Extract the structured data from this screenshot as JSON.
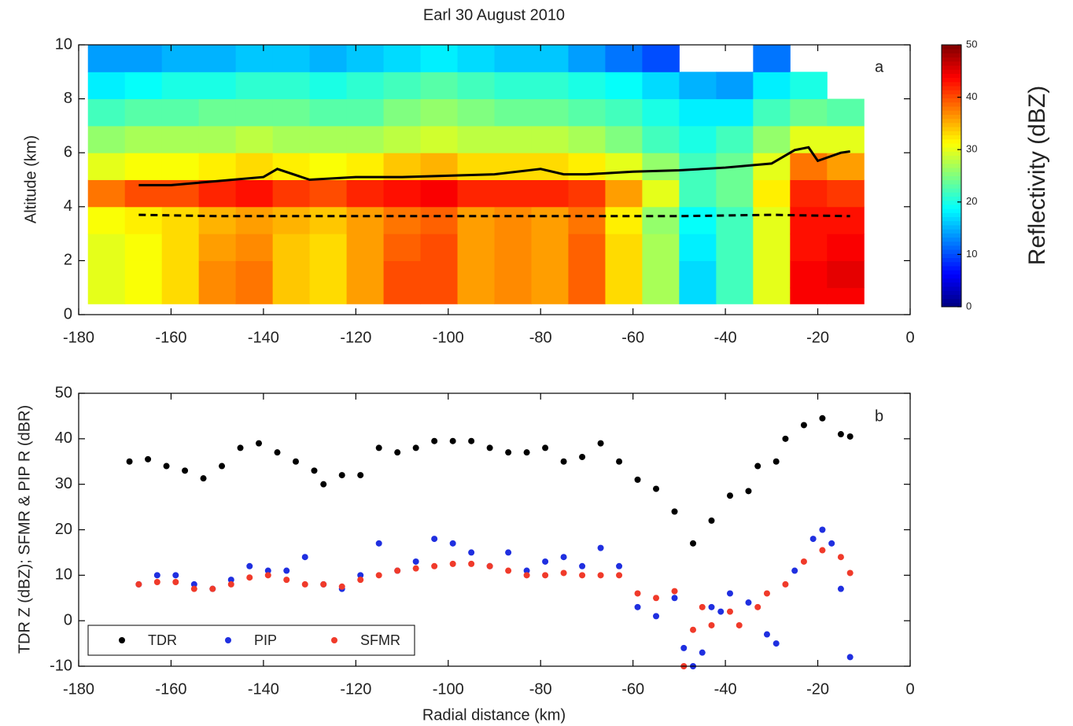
{
  "chart_data": [
    {
      "type": "heatmap",
      "title": "Earl 30 August 2010",
      "ylabel": "Altitude (km)",
      "panel_label": "a",
      "xlim": [
        -180,
        0
      ],
      "xticks": [
        -180,
        -160,
        -140,
        -120,
        -100,
        -80,
        -60,
        -40,
        -20,
        0
      ],
      "ylim": [
        0,
        10
      ],
      "yticks": [
        0,
        2,
        4,
        6,
        8,
        10
      ],
      "colormap": "jet",
      "clim": [
        0,
        50
      ],
      "cticks": [
        0,
        10,
        20,
        30,
        40,
        50
      ],
      "clabel": "Reflectivity (dBZ)",
      "x_bins": [
        -178,
        -170,
        -162,
        -154,
        -146,
        -138,
        -130,
        -122,
        -114,
        -106,
        -98,
        -90,
        -82,
        -74,
        -66,
        -58,
        -50,
        -42,
        -34,
        -26,
        -18,
        -10
      ],
      "y_bins": [
        0.4,
        1,
        2,
        3,
        4,
        5,
        6,
        7,
        8,
        9,
        10
      ],
      "z": [
        [
          30,
          30,
          30,
          31,
          38,
          30,
          26,
          22,
          18,
          14
        ],
        [
          31,
          31,
          31,
          32,
          40,
          31,
          27,
          23,
          19,
          14
        ],
        [
          33,
          33,
          33,
          33,
          40,
          31,
          27,
          23,
          20,
          15
        ],
        [
          37,
          37,
          36,
          35,
          42,
          32,
          27,
          24,
          20,
          15
        ],
        [
          38,
          38,
          37,
          36,
          43,
          33,
          28,
          24,
          21,
          16
        ],
        [
          34,
          34,
          34,
          35,
          41,
          32,
          27,
          24,
          21,
          16
        ],
        [
          33,
          33,
          33,
          34,
          40,
          31,
          27,
          23,
          20,
          15
        ],
        [
          36,
          36,
          36,
          36,
          42,
          32,
          27,
          23,
          21,
          16
        ],
        [
          40,
          40,
          39,
          38,
          43,
          34,
          28,
          25,
          22,
          17
        ],
        [
          40,
          40,
          40,
          39,
          44,
          35,
          29,
          26,
          23,
          18
        ],
        [
          36,
          36,
          36,
          36,
          42,
          33,
          28,
          25,
          22,
          17
        ],
        [
          37,
          37,
          37,
          37,
          42,
          33,
          28,
          24,
          21,
          16
        ],
        [
          36,
          36,
          36,
          36,
          42,
          33,
          28,
          24,
          21,
          16
        ],
        [
          39,
          39,
          39,
          38,
          41,
          32,
          27,
          23,
          20,
          14
        ],
        [
          33,
          33,
          33,
          32,
          36,
          30,
          25,
          22,
          19,
          12
        ],
        [
          27,
          27,
          27,
          26,
          30,
          26,
          22,
          20,
          17,
          10
        ],
        [
          17,
          17,
          18,
          19,
          22,
          22,
          20,
          18,
          15,
          null
        ],
        [
          22,
          22,
          22,
          22,
          24,
          24,
          22,
          18,
          14,
          null
        ],
        [
          30,
          30,
          30,
          30,
          32,
          30,
          26,
          22,
          18,
          12
        ],
        [
          44,
          44,
          43,
          43,
          42,
          38,
          30,
          24,
          20,
          null
        ],
        [
          44,
          45,
          44,
          43,
          41,
          36,
          30,
          23,
          null,
          null
        ]
      ],
      "series": [
        {
          "color": "#000000",
          "dash": false,
          "x": [
            -167,
            -160,
            -150,
            -140,
            -137,
            -130,
            -120,
            -110,
            -100,
            -90,
            -80,
            -75,
            -70,
            -60,
            -50,
            -40,
            -30,
            -25,
            -22,
            -20,
            -15,
            -13
          ],
          "values": [
            4.8,
            4.8,
            4.95,
            5.1,
            5.4,
            5.0,
            5.1,
            5.1,
            5.15,
            5.2,
            5.4,
            5.2,
            5.2,
            5.3,
            5.35,
            5.45,
            5.6,
            6.1,
            6.2,
            5.7,
            6.0,
            6.05
          ]
        },
        {
          "color": "#000000",
          "dash": true,
          "x": [
            -167,
            -150,
            -130,
            -110,
            -90,
            -70,
            -50,
            -30,
            -13
          ],
          "values": [
            3.7,
            3.65,
            3.65,
            3.65,
            3.65,
            3.65,
            3.65,
            3.7,
            3.65
          ]
        }
      ]
    },
    {
      "type": "scatter",
      "ylabel": "TDR Z (dBZ); SFMR & PIP R (dBR)",
      "xlabel": "Radial distance (km)",
      "panel_label": "b",
      "xlim": [
        -180,
        0
      ],
      "xticks": [
        -180,
        -160,
        -140,
        -120,
        -100,
        -80,
        -60,
        -40,
        -20,
        0
      ],
      "ylim": [
        -10,
        50
      ],
      "yticks": [
        -10,
        0,
        10,
        20,
        30,
        40,
        50
      ],
      "legend": "lower left",
      "series": [
        {
          "name": "TDR",
          "color": "#000000",
          "x": [
            -169,
            -165,
            -161,
            -157,
            -153,
            -149,
            -145,
            -141,
            -137,
            -133,
            -129,
            -127,
            -123,
            -119,
            -115,
            -111,
            -107,
            -103,
            -99,
            -95,
            -91,
            -87,
            -83,
            -79,
            -75,
            -71,
            -67,
            -63,
            -59,
            -55,
            -51,
            -47,
            -43,
            -39,
            -35,
            -33,
            -29,
            -27,
            -23,
            -19,
            -15,
            -13
          ],
          "values": [
            35,
            35.5,
            34,
            33,
            31.3,
            34,
            38,
            39,
            37,
            35,
            33,
            30,
            32,
            32,
            38,
            37,
            38,
            39.5,
            39.5,
            39.5,
            38,
            37,
            37,
            38,
            35,
            36,
            39,
            35,
            31,
            29,
            24,
            17,
            22,
            27.5,
            28.5,
            34,
            35,
            40,
            43,
            44.5,
            41,
            40.5
          ]
        },
        {
          "name": "PIP",
          "color": "#1f2fe0",
          "x": [
            -167,
            -163,
            -159,
            -155,
            -151,
            -147,
            -143,
            -139,
            -135,
            -131,
            -127,
            -123,
            -119,
            -115,
            -111,
            -107,
            -103,
            -99,
            -95,
            -91,
            -87,
            -83,
            -79,
            -75,
            -71,
            -67,
            -63,
            -59,
            -55,
            -51,
            -49,
            -47,
            -45,
            -43,
            -41,
            -39,
            -35,
            -31,
            -29,
            -25,
            -21,
            -19,
            -17,
            -15,
            -13
          ],
          "values": [
            8,
            10,
            10,
            8,
            7,
            9,
            12,
            11,
            11,
            14,
            8,
            7,
            10,
            17,
            11,
            13,
            18,
            17,
            15,
            12,
            15,
            11,
            13,
            14,
            12,
            16,
            12,
            3,
            1,
            5,
            -6,
            -10,
            -7,
            3,
            2,
            6,
            4,
            -3,
            -5,
            11,
            18,
            20,
            17,
            7,
            -8
          ]
        },
        {
          "name": "SFMR",
          "color": "#f03a2a",
          "x": [
            -167,
            -163,
            -159,
            -155,
            -151,
            -147,
            -143,
            -139,
            -135,
            -131,
            -127,
            -123,
            -119,
            -115,
            -111,
            -107,
            -103,
            -99,
            -95,
            -91,
            -87,
            -83,
            -79,
            -75,
            -71,
            -67,
            -63,
            -59,
            -55,
            -51,
            -49,
            -47,
            -45,
            -43,
            -39,
            -37,
            -33,
            -31,
            -27,
            -23,
            -19,
            -15,
            -13
          ],
          "values": [
            8,
            8.5,
            8.5,
            7,
            7,
            8,
            9.5,
            10,
            9,
            8,
            8,
            7.5,
            9,
            10,
            11,
            11.5,
            12,
            12.5,
            12.5,
            12,
            11,
            10,
            10,
            10.5,
            10,
            10,
            10,
            6,
            5,
            6.5,
            -10,
            -2,
            3,
            -1,
            2,
            -1,
            3,
            6,
            8,
            13,
            15.5,
            14,
            10.5
          ]
        }
      ]
    }
  ]
}
